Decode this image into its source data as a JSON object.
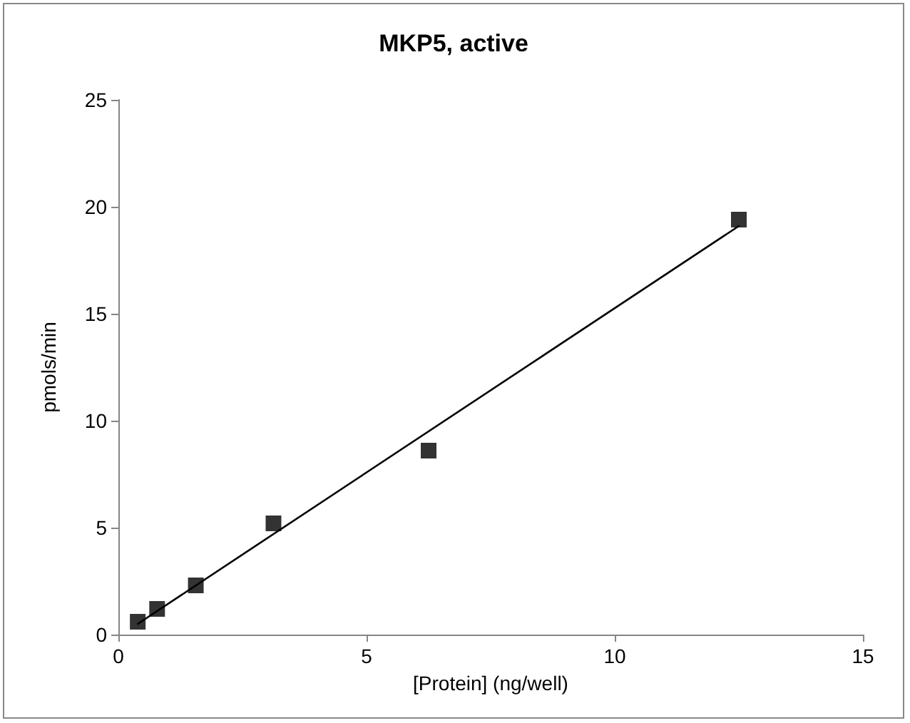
{
  "chart_data": {
    "type": "scatter",
    "title": "MKP5, active",
    "xlabel": "[Protein] (ng/well)",
    "ylabel": "pmols/min",
    "xlim": [
      0,
      15
    ],
    "xticks": [
      0,
      5,
      10,
      15
    ],
    "ylim": [
      0,
      25
    ],
    "yticks": [
      0,
      5,
      10,
      15,
      20,
      25
    ],
    "grid": false,
    "series": [
      {
        "color": "#000000",
        "marker": "square",
        "x": [
          0.39,
          0.78,
          1.56,
          3.125,
          6.25,
          12.5
        ],
        "values": [
          0.6,
          1.2,
          2.3,
          5.2,
          8.6,
          19.4
        ]
      },
      {
        "type": "line",
        "color": "#000000",
        "marker": "none",
        "line_style": "solid",
        "x": [
          0.39,
          12.5
        ],
        "values": [
          0.5,
          19.1
        ]
      }
    ]
  }
}
